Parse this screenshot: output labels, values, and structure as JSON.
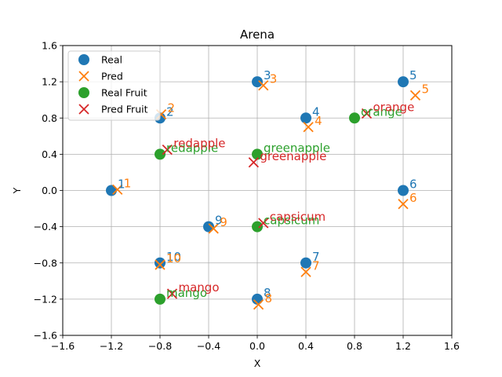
{
  "chart_data": {
    "type": "scatter",
    "title": "Arena",
    "xlabel": "X",
    "ylabel": "Y",
    "xlim": [
      -1.6,
      1.6
    ],
    "ylim": [
      -1.6,
      1.6
    ],
    "xticks": [
      "−1.6",
      "−1.2",
      "−0.8",
      "−0.4",
      "0.0",
      "0.4",
      "0.8",
      "1.2",
      "1.6"
    ],
    "yticks": [
      "−1.6",
      "−1.2",
      "−0.8",
      "−0.4",
      "0.0",
      "0.4",
      "0.8",
      "1.2",
      "1.6"
    ],
    "grid": true,
    "legend_position": "top-left",
    "colors": {
      "real": "#1f77b4",
      "pred": "#ff7f0e",
      "real_fruit": "#2ca02c",
      "pred_fruit": "#d62728"
    },
    "series": [
      {
        "name": "Real",
        "marker": "circle",
        "color": "#1f77b4",
        "points": [
          {
            "label": "1",
            "x": -1.2,
            "y": 0.0
          },
          {
            "label": "2",
            "x": -0.8,
            "y": 0.8
          },
          {
            "label": "3",
            "x": 0.0,
            "y": 1.2
          },
          {
            "label": "4",
            "x": 0.4,
            "y": 0.8
          },
          {
            "label": "5",
            "x": 1.2,
            "y": 1.2
          },
          {
            "label": "6",
            "x": 1.2,
            "y": 0.0
          },
          {
            "label": "7",
            "x": 0.4,
            "y": -0.8
          },
          {
            "label": "8",
            "x": 0.0,
            "y": -1.2
          },
          {
            "label": "9",
            "x": -0.4,
            "y": -0.4
          },
          {
            "label": "10",
            "x": -0.8,
            "y": -0.8
          }
        ]
      },
      {
        "name": "Pred",
        "marker": "x",
        "color": "#ff7f0e",
        "points": [
          {
            "label": "1",
            "x": -1.15,
            "y": 0.01
          },
          {
            "label": "2",
            "x": -0.79,
            "y": 0.84
          },
          {
            "label": "3",
            "x": 0.05,
            "y": 1.16
          },
          {
            "label": "4",
            "x": 0.42,
            "y": 0.7
          },
          {
            "label": "5",
            "x": 1.3,
            "y": 1.05
          },
          {
            "label": "6",
            "x": 1.2,
            "y": -0.15
          },
          {
            "label": "7",
            "x": 0.4,
            "y": -0.9
          },
          {
            "label": "8",
            "x": 0.01,
            "y": -1.26
          },
          {
            "label": "9",
            "x": -0.36,
            "y": -0.42
          },
          {
            "label": "10",
            "x": -0.8,
            "y": -0.82
          }
        ]
      },
      {
        "name": "Real Fruit",
        "marker": "circle",
        "color": "#2ca02c",
        "points": [
          {
            "label": "redapple",
            "x": -0.8,
            "y": 0.4
          },
          {
            "label": "greenapple",
            "x": 0.0,
            "y": 0.4
          },
          {
            "label": "orange",
            "x": 0.8,
            "y": 0.8
          },
          {
            "label": "capsicum",
            "x": 0.0,
            "y": -0.4
          },
          {
            "label": "mango",
            "x": -0.8,
            "y": -1.2
          }
        ]
      },
      {
        "name": "Pred Fruit",
        "marker": "x",
        "color": "#d62728",
        "points": [
          {
            "label": "redapple",
            "x": -0.74,
            "y": 0.45
          },
          {
            "label": "greenapple",
            "x": -0.03,
            "y": 0.31
          },
          {
            "label": "orange",
            "x": 0.9,
            "y": 0.85
          },
          {
            "label": "capsicum",
            "x": 0.05,
            "y": -0.36
          },
          {
            "label": "mango",
            "x": -0.7,
            "y": -1.14
          }
        ]
      }
    ]
  }
}
